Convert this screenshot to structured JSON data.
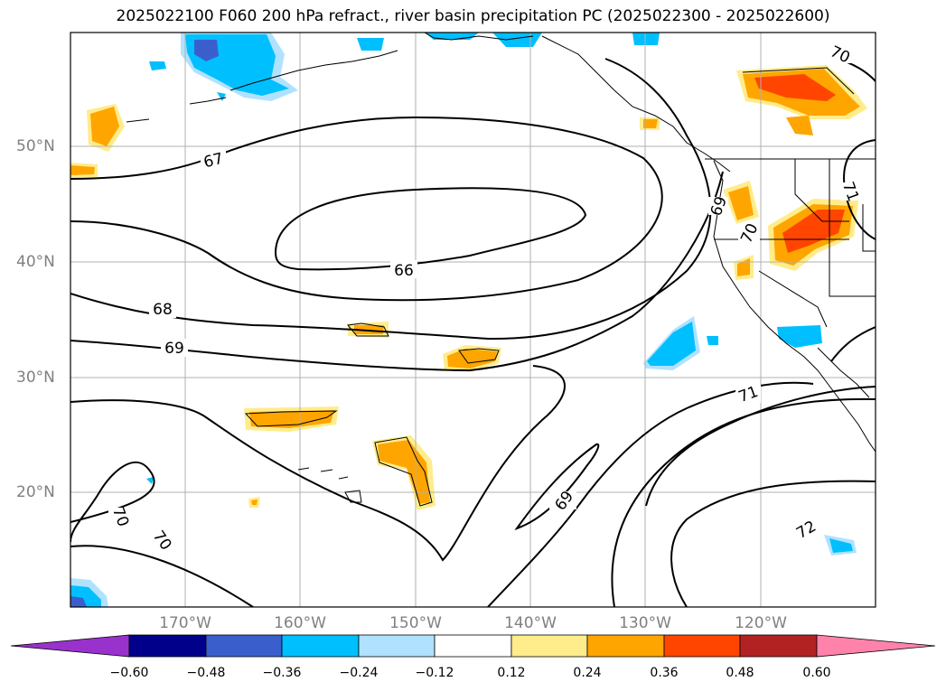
{
  "title": "2025022100 F060 200 hPa refract., river basin precipitation PC (2025022300 - 2025022600)",
  "lat_labels": [
    "50°N",
    "40°N",
    "30°N",
    "20°N"
  ],
  "lon_labels": [
    "170°W",
    "160°W",
    "150°W",
    "140°W",
    "130°W",
    "120°W"
  ],
  "contour_labels": [
    "67",
    "66",
    "68",
    "69",
    "70",
    "70",
    "71",
    "69",
    "72",
    "70",
    "69",
    "70",
    "71"
  ],
  "colorbar": {
    "ticks": [
      "−0.60",
      "−0.48",
      "−0.36",
      "−0.24",
      "−0.12",
      "0.12",
      "0.24",
      "0.36",
      "0.48",
      "0.60"
    ],
    "colors": [
      "#9932cc",
      "#00008b",
      "#3a5fcd",
      "#00bfff",
      "#b0e2ff",
      "#ffffff",
      "#ffec8b",
      "#ffa500",
      "#ff4500",
      "#b22222",
      "#ff82ab"
    ]
  },
  "colors": {
    "neg_strong": "#3a5fcd",
    "neg": "#00bfff",
    "neg_weak": "#b0e2ff",
    "pos_weak": "#ffec8b",
    "pos": "#ffa500",
    "pos_strong": "#ff4500",
    "grid": "#b0b0b0",
    "tick_label": "#808080"
  }
}
